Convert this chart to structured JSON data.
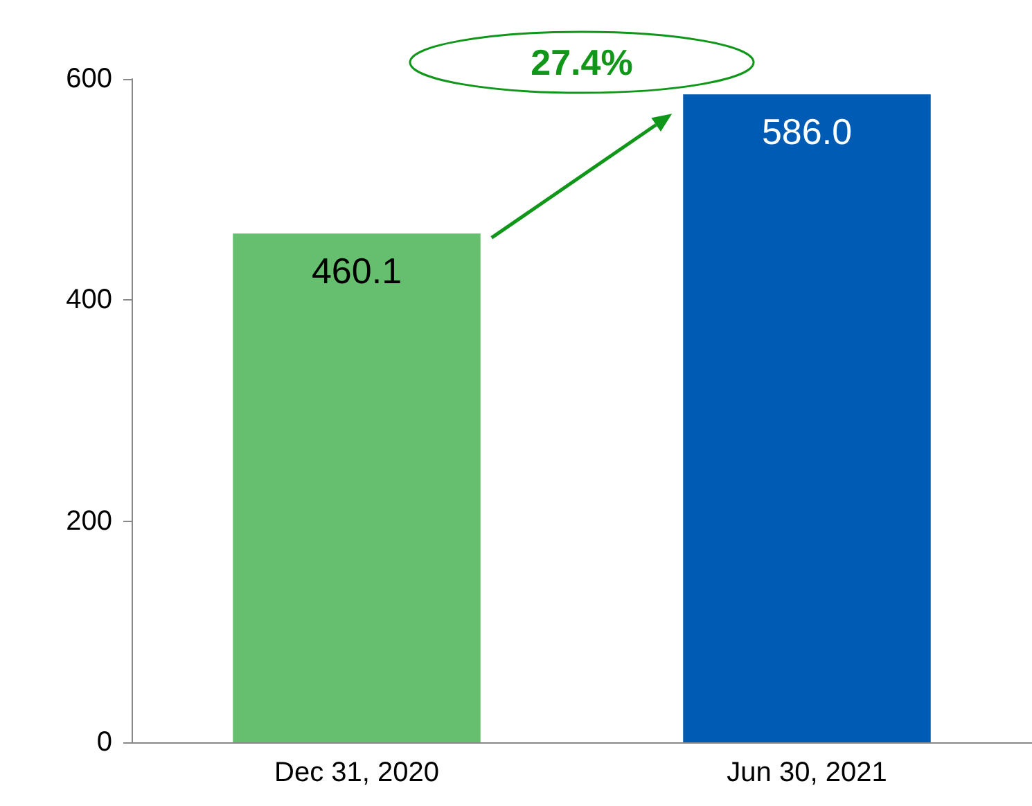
{
  "chart_data": {
    "type": "bar",
    "categories": [
      "Dec 31, 2020",
      "Jun 30, 2021"
    ],
    "values": [
      460.1,
      586.0
    ],
    "colors": [
      "#66bf6f",
      "#005bb5"
    ],
    "value_labels": [
      "460.1",
      "586.0"
    ],
    "ylim": [
      0,
      600
    ],
    "yticks": [
      0,
      200,
      400,
      600
    ],
    "grid": false,
    "annotations": [
      "27.4%"
    ]
  }
}
